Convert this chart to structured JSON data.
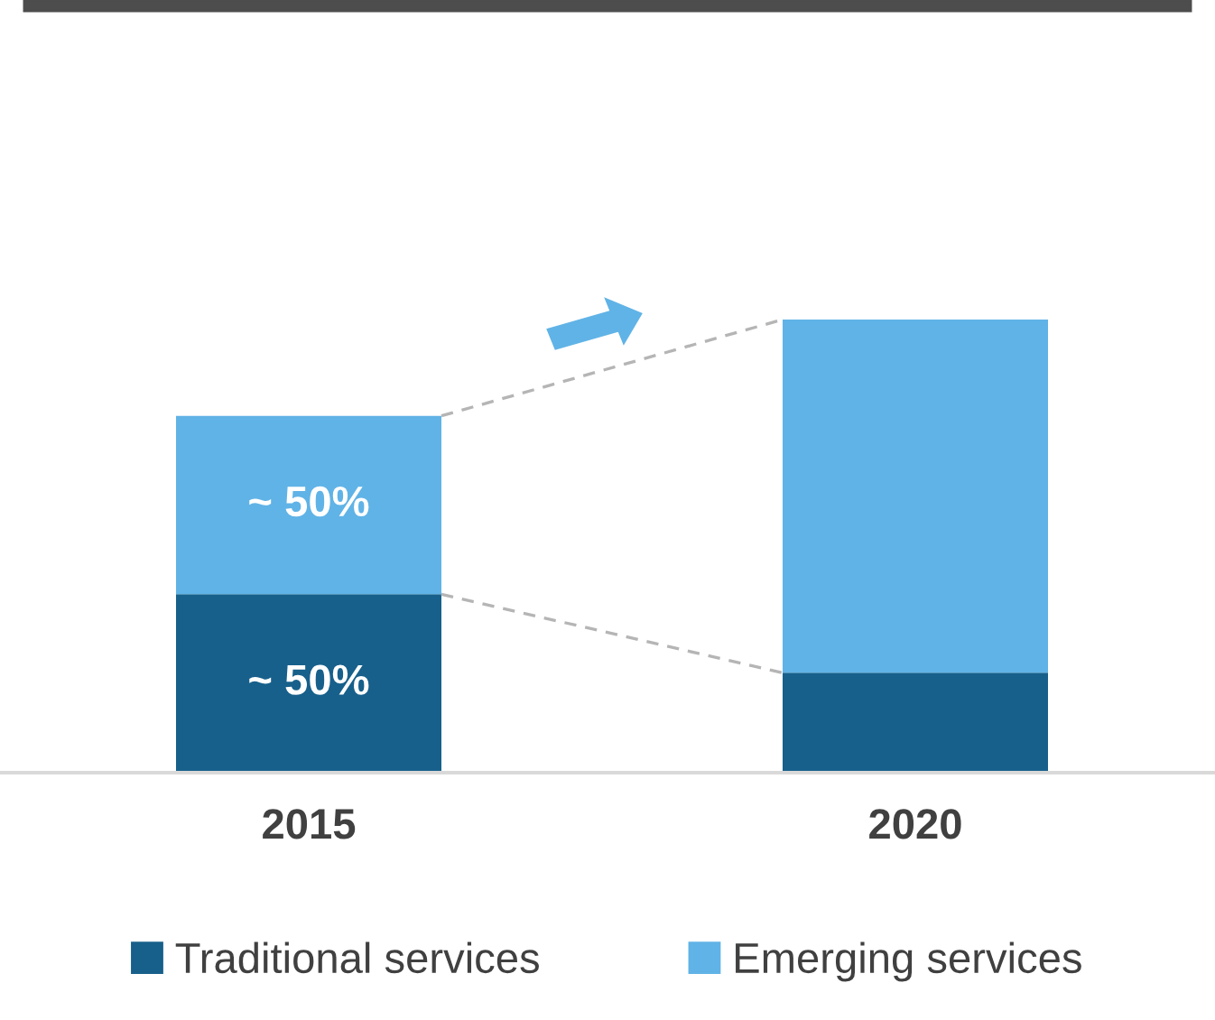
{
  "chart_data": {
    "type": "bar",
    "stacked": true,
    "ylim": [
      0,
      127
    ],
    "tick_labels": "x",
    "categories": [
      "2015",
      "2020"
    ],
    "series": [
      {
        "name": "Traditional services",
        "color": "#17608b",
        "values": [
          50,
          28
        ],
        "value_labels": [
          "~ 50%",
          null
        ]
      },
      {
        "name": "Emerging services",
        "color": "#60b3e6",
        "values": [
          50,
          99
        ],
        "value_labels": [
          "~ 50%",
          null
        ]
      }
    ],
    "legend": "bottom",
    "grid": false
  }
}
